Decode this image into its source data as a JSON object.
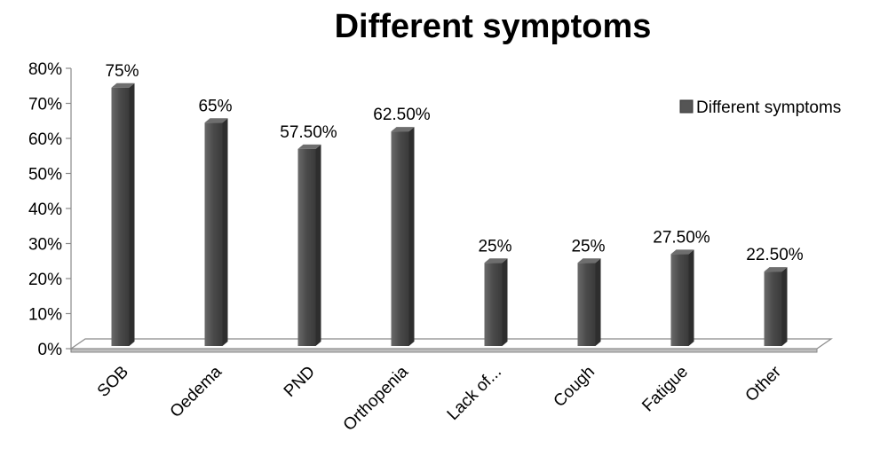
{
  "chart_data": {
    "type": "bar",
    "title": "Different symptoms",
    "categories": [
      "SOB",
      "Oedema",
      "PND",
      "Orthopenia",
      "Lack of...",
      "Cough",
      "Fatigue",
      "Other"
    ],
    "series": [
      {
        "name": "Different symptoms",
        "values": [
          75,
          65,
          57.5,
          62.5,
          25,
          25,
          27.5,
          22.5
        ],
        "labels": [
          "75%",
          "65%",
          "57.50%",
          "62.50%",
          "25%",
          "25%",
          "27.50%",
          "22.50%"
        ]
      }
    ],
    "y_ticks": [
      "0%",
      "10%",
      "20%",
      "30%",
      "40%",
      "50%",
      "60%",
      "70%",
      "80%"
    ],
    "ylim": [
      0,
      80
    ],
    "xlabel": "",
    "ylabel": "",
    "legend_position": "right",
    "grid": false,
    "bar_color": "#555555"
  }
}
